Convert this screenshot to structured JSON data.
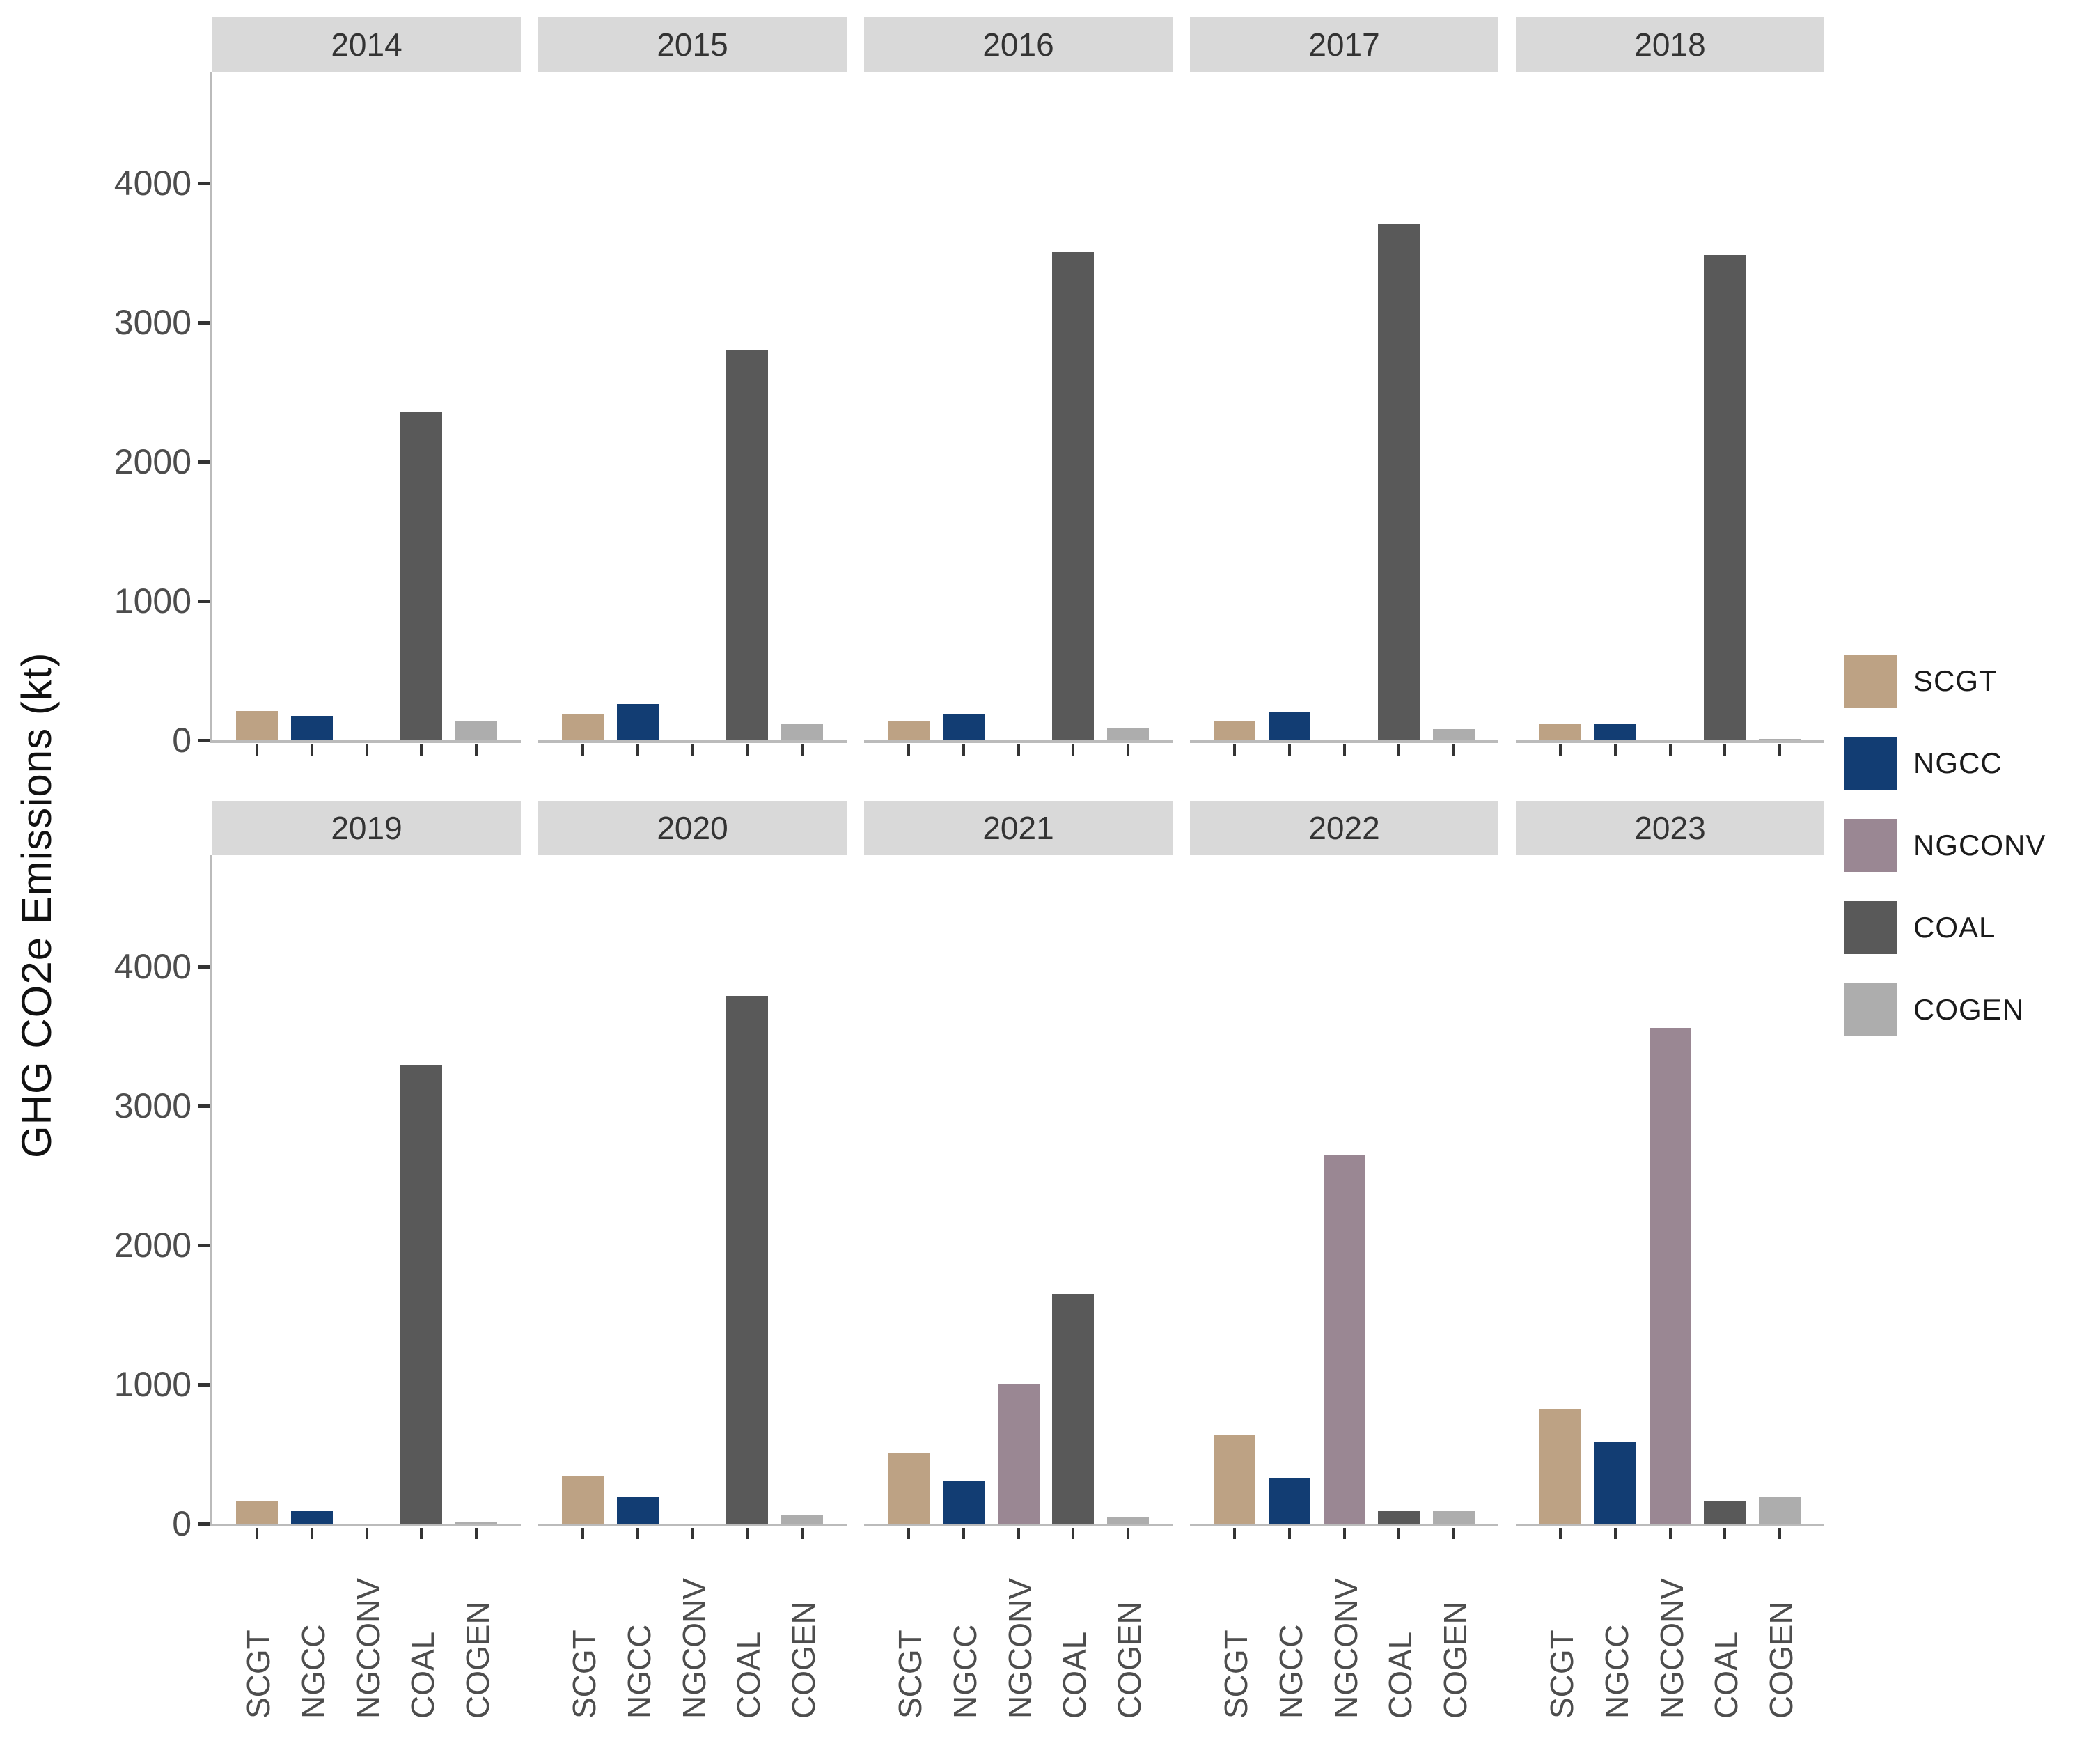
{
  "y_axis": {
    "title": "GHG CO2e Emissions (kt)",
    "tick_labels": [
      "0",
      "1000",
      "2000",
      "3000",
      "4000"
    ]
  },
  "legend": {
    "items": [
      {
        "label": "SCGT",
        "color": "#BDA284"
      },
      {
        "label": "NGCC",
        "color": "#123D73"
      },
      {
        "label": "NGCONV",
        "color": "#9A8793"
      },
      {
        "label": "COAL",
        "color": "#595959"
      },
      {
        "label": "COGEN",
        "color": "#ADADAD"
      }
    ]
  },
  "style_colors": {
    "strip_background": "#D9D9D9",
    "strip_text": "#333333",
    "axis_line": "#BBBBBB",
    "tick_mark": "#333333",
    "tick_label_text": "#4D4D4D"
  },
  "chart_data": {
    "type": "bar",
    "facet_by": "year",
    "facet_layout": {
      "rows": 2,
      "cols": 5
    },
    "categories": [
      "SCGT",
      "NGCC",
      "NGCONV",
      "COAL",
      "COGEN"
    ],
    "series_colors": {
      "SCGT": "#BDA284",
      "NGCC": "#123D73",
      "NGCONV": "#9A8793",
      "COAL": "#595959",
      "COGEN": "#ADADAD"
    },
    "title": "",
    "xlabel": "",
    "ylabel": "GHG CO2e Emissions (kt)",
    "ylim": [
      0,
      4800
    ],
    "yticks": [
      0,
      1000,
      2000,
      3000,
      4000
    ],
    "grid": false,
    "legend_position": "right",
    "facets": [
      {
        "year": "2014",
        "values": [
          210,
          175,
          0,
          2360,
          135
        ]
      },
      {
        "year": "2015",
        "values": [
          190,
          260,
          0,
          2800,
          120
        ]
      },
      {
        "year": "2016",
        "values": [
          135,
          185,
          0,
          3505,
          85
        ]
      },
      {
        "year": "2017",
        "values": [
          135,
          205,
          0,
          3705,
          80
        ]
      },
      {
        "year": "2018",
        "values": [
          115,
          115,
          0,
          3485,
          10
        ]
      },
      {
        "year": "2019",
        "values": [
          165,
          90,
          0,
          3290,
          10
        ]
      },
      {
        "year": "2020",
        "values": [
          345,
          195,
          0,
          3790,
          60
        ]
      },
      {
        "year": "2021",
        "values": [
          510,
          305,
          1000,
          1650,
          50
        ]
      },
      {
        "year": "2022",
        "values": [
          640,
          325,
          2650,
          90,
          90
        ]
      },
      {
        "year": "2023",
        "values": [
          820,
          590,
          3560,
          160,
          195
        ]
      }
    ]
  }
}
